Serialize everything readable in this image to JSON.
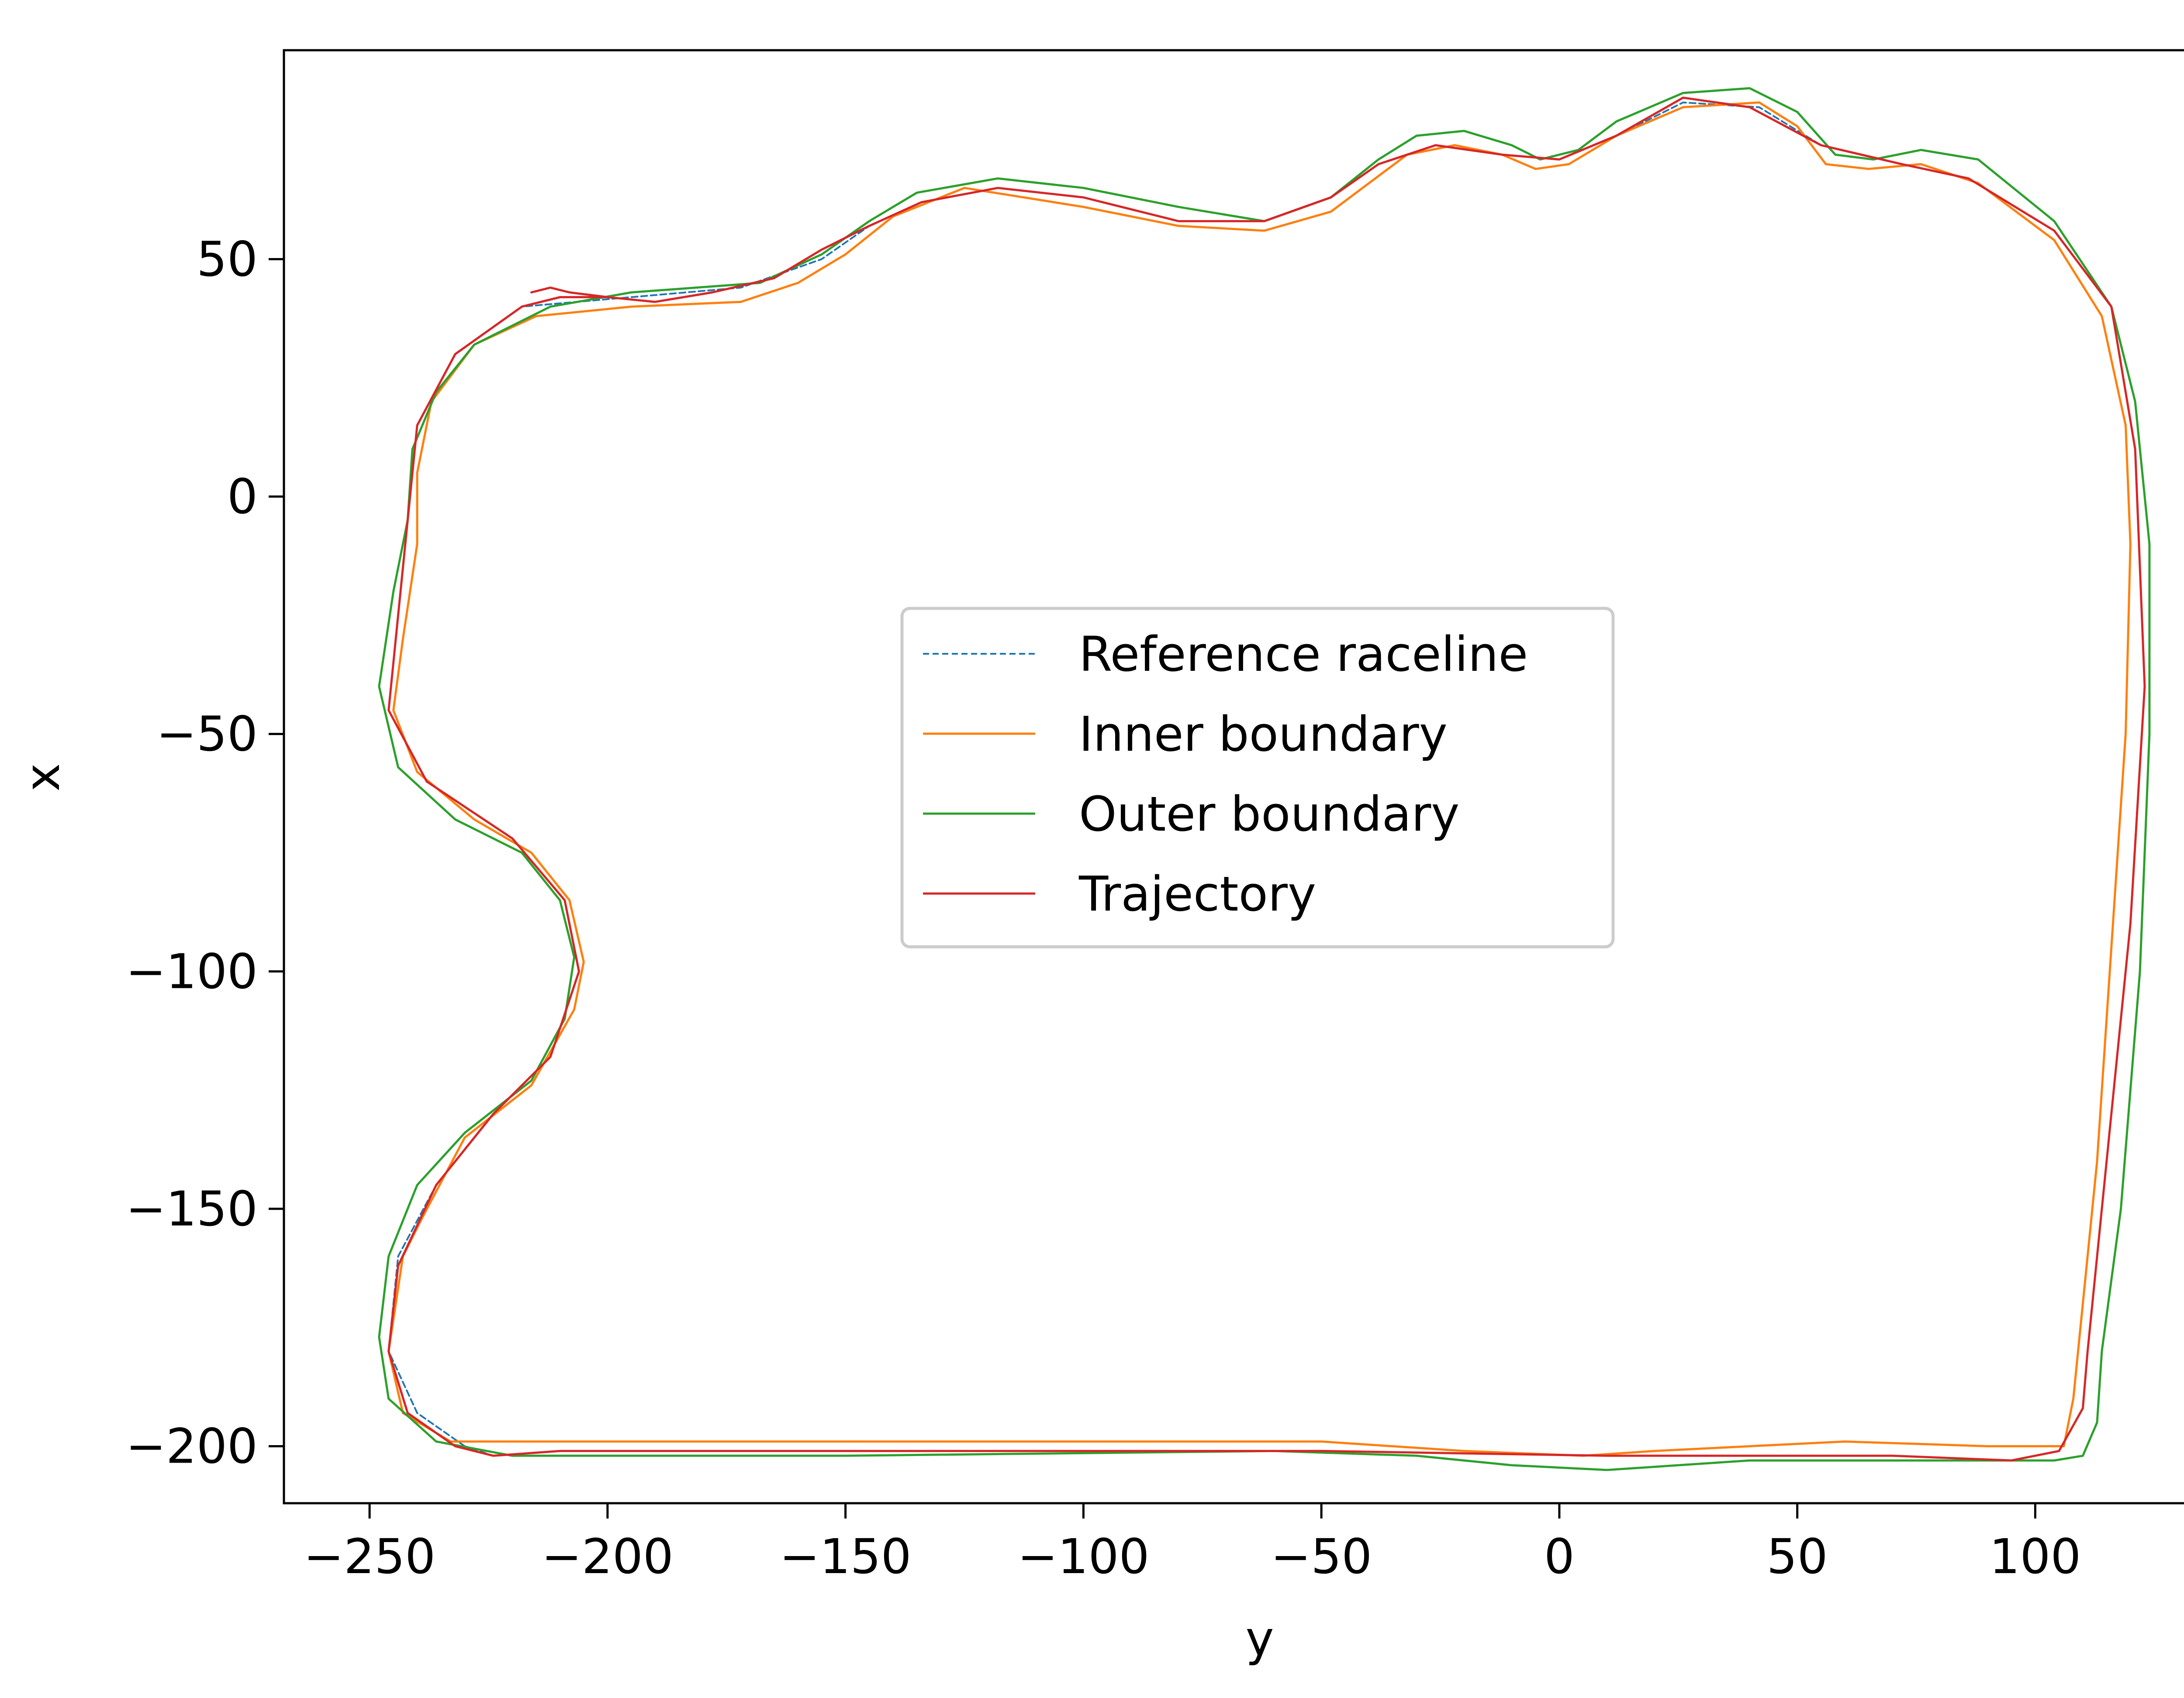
{
  "chart_data": {
    "type": "line",
    "title": "",
    "xlabel": "y",
    "ylabel": "x",
    "xlim": [
      -268,
      142
    ],
    "ylim": [
      -212,
      94
    ],
    "xticks": [
      -250,
      -200,
      -150,
      -100,
      -50,
      0,
      50,
      100
    ],
    "yticks": [
      50,
      0,
      -50,
      -100,
      -150,
      -200
    ],
    "xtick_labels": [
      "−250",
      "−200",
      "−150",
      "−100",
      "−50",
      "0",
      "50",
      "100"
    ],
    "ytick_labels": [
      "50",
      "0",
      "−50",
      "−100",
      "−150",
      "−200"
    ],
    "grid": false,
    "legend": {
      "placement": "center",
      "entries": [
        "Reference raceline",
        "Inner boundary",
        "Outer boundary",
        "Trajectory"
      ]
    },
    "series": [
      {
        "name": "Reference raceline",
        "color": "#1f77b4",
        "style": "dashed",
        "points": [
          [
            -230,
            -200
          ],
          [
            -240,
            -193
          ],
          [
            -246,
            -180
          ],
          [
            -244,
            -160
          ],
          [
            -236,
            -145
          ],
          [
            -224,
            -130
          ],
          [
            -212,
            -118
          ],
          [
            -206,
            -100
          ],
          [
            -209,
            -85
          ],
          [
            -220,
            -72
          ],
          [
            -238,
            -60
          ],
          [
            -246,
            -45
          ],
          [
            -244,
            -25
          ],
          [
            -242,
            -5
          ],
          [
            -240,
            15
          ],
          [
            -232,
            30
          ],
          [
            -218,
            40
          ],
          [
            -195,
            42
          ],
          [
            -172,
            44
          ],
          [
            -155,
            50
          ],
          [
            -145,
            57
          ],
          [
            -134,
            62
          ],
          [
            -118,
            65
          ],
          [
            -100,
            63
          ],
          [
            -80,
            58
          ],
          [
            -62,
            58
          ],
          [
            -48,
            63
          ],
          [
            -38,
            70
          ],
          [
            -26,
            74
          ],
          [
            -12,
            72
          ],
          [
            0,
            71
          ],
          [
            12,
            76
          ],
          [
            26,
            83
          ],
          [
            42,
            82
          ],
          [
            55,
            74
          ],
          [
            72,
            70
          ],
          [
            86,
            67
          ],
          [
            104,
            56
          ],
          [
            116,
            40
          ],
          [
            121,
            10
          ],
          [
            123,
            -40
          ],
          [
            120,
            -90
          ],
          [
            115,
            -140
          ],
          [
            111,
            -180
          ],
          [
            110,
            -192
          ],
          [
            105,
            -201
          ],
          [
            95,
            -203
          ],
          [
            70,
            -202
          ],
          [
            40,
            -202
          ],
          [
            10,
            -202
          ],
          [
            -50,
            -201
          ],
          [
            -150,
            -201
          ],
          [
            -210,
            -201
          ],
          [
            -224,
            -202
          ],
          [
            -230,
            -200
          ]
        ]
      },
      {
        "name": "Inner boundary",
        "color": "#ff7f0e",
        "style": "solid",
        "points": [
          [
            -233,
            -199
          ],
          [
            -243,
            -193
          ],
          [
            -246,
            -180
          ],
          [
            -243,
            -160
          ],
          [
            -239,
            -152
          ],
          [
            -230,
            -135
          ],
          [
            -216,
            -124
          ],
          [
            -207,
            -108
          ],
          [
            -205,
            -98
          ],
          [
            -208,
            -85
          ],
          [
            -216,
            -75
          ],
          [
            -228,
            -68
          ],
          [
            -240,
            -58
          ],
          [
            -245,
            -45
          ],
          [
            -243,
            -30
          ],
          [
            -240,
            -10
          ],
          [
            -240,
            5
          ],
          [
            -237,
            20
          ],
          [
            -228,
            32
          ],
          [
            -215,
            38
          ],
          [
            -195,
            40
          ],
          [
            -172,
            41
          ],
          [
            -160,
            45
          ],
          [
            -150,
            51
          ],
          [
            -140,
            59
          ],
          [
            -125,
            65
          ],
          [
            -100,
            61
          ],
          [
            -80,
            57
          ],
          [
            -62,
            56
          ],
          [
            -48,
            60
          ],
          [
            -40,
            66
          ],
          [
            -32,
            72
          ],
          [
            -22,
            74
          ],
          [
            -12,
            72
          ],
          [
            -5,
            69
          ],
          [
            2,
            70
          ],
          [
            12,
            76
          ],
          [
            26,
            82
          ],
          [
            42,
            83
          ],
          [
            50,
            78
          ],
          [
            56,
            70
          ],
          [
            65,
            69
          ],
          [
            76,
            70
          ],
          [
            88,
            66
          ],
          [
            104,
            54
          ],
          [
            114,
            38
          ],
          [
            119,
            15
          ],
          [
            120,
            -10
          ],
          [
            119,
            -50
          ],
          [
            117,
            -80
          ],
          [
            113,
            -140
          ],
          [
            108,
            -190
          ],
          [
            106,
            -200
          ],
          [
            90,
            -200
          ],
          [
            60,
            -199
          ],
          [
            40,
            -200
          ],
          [
            20,
            -201
          ],
          [
            5,
            -202
          ],
          [
            -20,
            -201
          ],
          [
            -50,
            -199
          ],
          [
            -100,
            -199
          ],
          [
            -150,
            -199
          ],
          [
            -200,
            -199
          ],
          [
            -220,
            -199
          ],
          [
            -233,
            -199
          ]
        ]
      },
      {
        "name": "Outer boundary",
        "color": "#2ca02c",
        "style": "solid",
        "points": [
          [
            -220,
            -202
          ],
          [
            -236,
            -199
          ],
          [
            -246,
            -190
          ],
          [
            -248,
            -177
          ],
          [
            -246,
            -160
          ],
          [
            -240,
            -145
          ],
          [
            -230,
            -134
          ],
          [
            -216,
            -123
          ],
          [
            -209,
            -110
          ],
          [
            -207,
            -97
          ],
          [
            -210,
            -85
          ],
          [
            -218,
            -75
          ],
          [
            -232,
            -68
          ],
          [
            -244,
            -57
          ],
          [
            -248,
            -40
          ],
          [
            -245,
            -20
          ],
          [
            -242,
            -5
          ],
          [
            -241,
            10
          ],
          [
            -236,
            22
          ],
          [
            -228,
            32
          ],
          [
            -212,
            40
          ],
          [
            -195,
            43
          ],
          [
            -168,
            45
          ],
          [
            -155,
            51
          ],
          [
            -145,
            58
          ],
          [
            -135,
            64
          ],
          [
            -118,
            67
          ],
          [
            -100,
            65
          ],
          [
            -80,
            61
          ],
          [
            -62,
            58
          ],
          [
            -48,
            63
          ],
          [
            -38,
            71
          ],
          [
            -30,
            76
          ],
          [
            -20,
            77
          ],
          [
            -10,
            74
          ],
          [
            -4,
            71
          ],
          [
            4,
            73
          ],
          [
            12,
            79
          ],
          [
            26,
            85
          ],
          [
            40,
            86
          ],
          [
            50,
            81
          ],
          [
            58,
            72
          ],
          [
            66,
            71
          ],
          [
            76,
            73
          ],
          [
            88,
            71
          ],
          [
            104,
            58
          ],
          [
            116,
            40
          ],
          [
            121,
            20
          ],
          [
            124,
            -10
          ],
          [
            124,
            -50
          ],
          [
            122,
            -100
          ],
          [
            118,
            -150
          ],
          [
            114,
            -180
          ],
          [
            113,
            -195
          ],
          [
            110,
            -202
          ],
          [
            104,
            -203
          ],
          [
            80,
            -203
          ],
          [
            55,
            -203
          ],
          [
            40,
            -203
          ],
          [
            10,
            -205
          ],
          [
            -10,
            -204
          ],
          [
            -30,
            -202
          ],
          [
            -60,
            -201
          ],
          [
            -150,
            -202
          ],
          [
            -200,
            -202
          ],
          [
            -220,
            -202
          ]
        ]
      },
      {
        "name": "Trajectory",
        "color": "#d62728",
        "style": "solid",
        "points": [
          [
            -216,
            43
          ],
          [
            -212,
            44
          ],
          [
            -208,
            43
          ],
          [
            -200,
            42
          ],
          [
            -190,
            41
          ],
          [
            -178,
            43
          ],
          [
            -165,
            46
          ],
          [
            -155,
            52
          ],
          [
            -145,
            57
          ],
          [
            -134,
            62
          ],
          [
            -118,
            65
          ],
          [
            -100,
            63
          ],
          [
            -80,
            58
          ],
          [
            -62,
            58
          ],
          [
            -48,
            63
          ],
          [
            -38,
            70
          ],
          [
            -26,
            74
          ],
          [
            -12,
            72
          ],
          [
            0,
            71
          ],
          [
            12,
            76
          ],
          [
            26,
            84
          ],
          [
            40,
            82
          ],
          [
            55,
            74
          ],
          [
            72,
            70
          ],
          [
            86,
            67
          ],
          [
            104,
            56
          ],
          [
            116,
            40
          ],
          [
            121,
            10
          ],
          [
            123,
            -40
          ],
          [
            120,
            -90
          ],
          [
            115,
            -140
          ],
          [
            111,
            -180
          ],
          [
            110,
            -192
          ],
          [
            105,
            -201
          ],
          [
            95,
            -203
          ],
          [
            70,
            -202
          ],
          [
            40,
            -202
          ],
          [
            10,
            -202
          ],
          [
            -50,
            -201
          ],
          [
            -150,
            -201
          ],
          [
            -210,
            -201
          ],
          [
            -224,
            -202
          ],
          [
            -232,
            -200
          ],
          [
            -242,
            -193
          ],
          [
            -246,
            -180
          ],
          [
            -244,
            -162
          ],
          [
            -236,
            -145
          ],
          [
            -224,
            -130
          ],
          [
            -212,
            -118
          ],
          [
            -206,
            -100
          ],
          [
            -209,
            -85
          ],
          [
            -220,
            -72
          ],
          [
            -238,
            -60
          ],
          [
            -246,
            -45
          ],
          [
            -244,
            -25
          ],
          [
            -242,
            -5
          ],
          [
            -240,
            15
          ],
          [
            -232,
            30
          ],
          [
            -218,
            40
          ],
          [
            -210,
            42
          ],
          [
            -200,
            42
          ]
        ]
      }
    ]
  }
}
